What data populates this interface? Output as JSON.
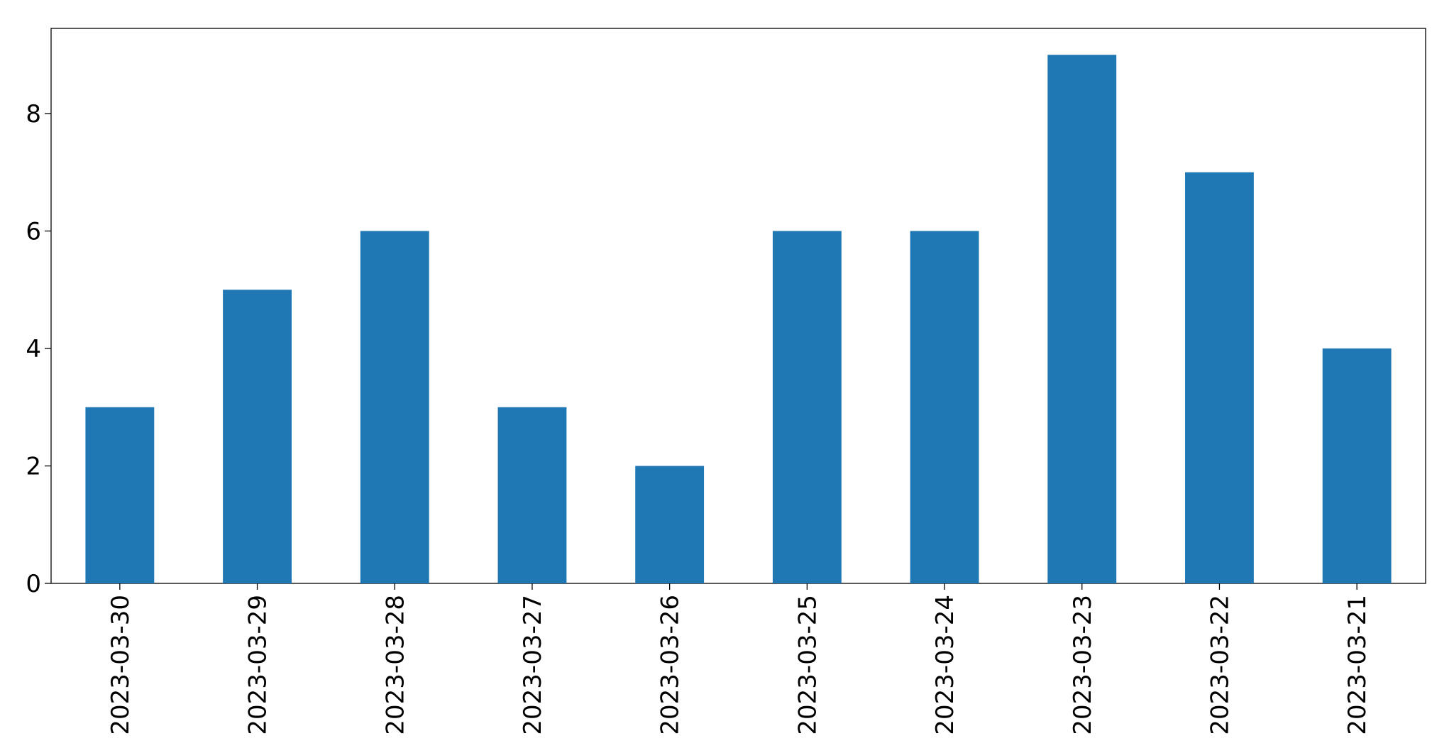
{
  "chart_data": {
    "type": "bar",
    "categories": [
      "2023-03-30",
      "2023-03-29",
      "2023-03-28",
      "2023-03-27",
      "2023-03-26",
      "2023-03-25",
      "2023-03-24",
      "2023-03-23",
      "2023-03-22",
      "2023-03-21"
    ],
    "values": [
      3,
      5,
      6,
      3,
      2,
      6,
      6,
      9,
      7,
      4
    ],
    "color": "#1f77b4",
    "ylim": [
      0,
      9.45
    ],
    "yticks": [
      0,
      2,
      4,
      6,
      8
    ],
    "grid": false
  }
}
